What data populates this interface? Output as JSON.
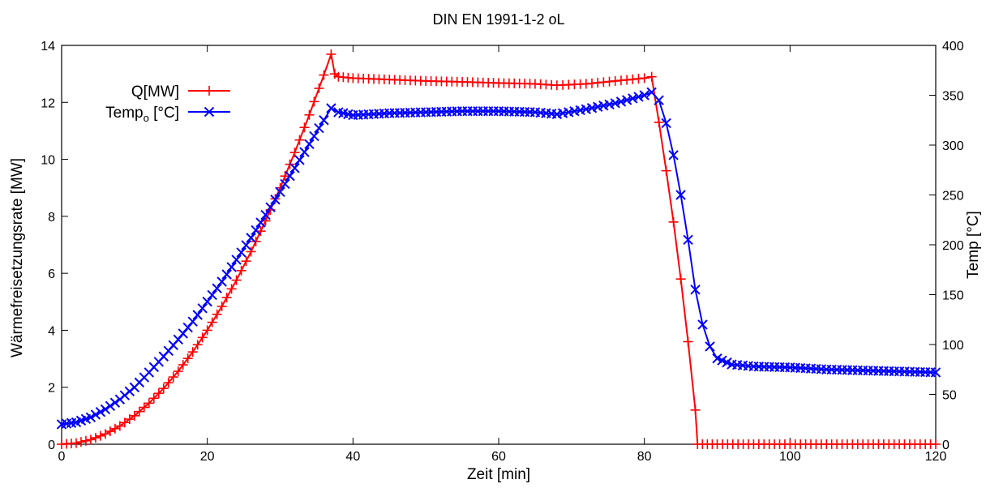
{
  "chart_data": {
    "type": "line",
    "title": "DIN EN 1991-1-2 oL",
    "xlabel": "Zeit [min]",
    "ylabel": "Wärmefreisetzungsrate [MW]",
    "y2label": "Temp [°C]",
    "xlim": [
      0,
      120
    ],
    "ylim": [
      0,
      14
    ],
    "y2lim": [
      0,
      400
    ],
    "x_ticks": [
      "0",
      "20",
      "40",
      "60",
      "80",
      "100",
      "120"
    ],
    "y_ticks": [
      "0",
      "2",
      "4",
      "6",
      "8",
      "10",
      "12",
      "14"
    ],
    "y2_ticks": [
      "0",
      "50",
      "100",
      "150",
      "200",
      "250",
      "300",
      "350",
      "400"
    ],
    "grid": false,
    "legend_position": "top-left",
    "series": [
      {
        "name": "Q[MW]",
        "axis": "left",
        "color": "#ff0000",
        "marker": "plus",
        "points": [
          [
            0,
            0
          ],
          [
            2,
            0.04
          ],
          [
            4,
            0.16
          ],
          [
            6,
            0.36
          ],
          [
            8,
            0.64
          ],
          [
            10,
            1.0
          ],
          [
            12,
            1.44
          ],
          [
            14,
            1.96
          ],
          [
            16,
            2.56
          ],
          [
            18,
            3.24
          ],
          [
            20,
            4.0
          ],
          [
            22,
            4.84
          ],
          [
            24,
            5.76
          ],
          [
            26,
            6.76
          ],
          [
            28,
            7.84
          ],
          [
            30,
            9.0
          ],
          [
            32,
            10.24
          ],
          [
            34,
            11.56
          ],
          [
            36,
            12.96
          ],
          [
            37,
            13.69
          ],
          [
            37.5,
            13.0
          ],
          [
            38,
            12.9
          ],
          [
            40,
            12.85
          ],
          [
            45,
            12.8
          ],
          [
            50,
            12.75
          ],
          [
            55,
            12.72
          ],
          [
            60,
            12.68
          ],
          [
            65,
            12.65
          ],
          [
            68,
            12.6
          ],
          [
            72,
            12.65
          ],
          [
            76,
            12.75
          ],
          [
            80,
            12.85
          ],
          [
            81,
            12.9
          ],
          [
            82,
            11.3
          ],
          [
            83,
            9.6
          ],
          [
            84,
            7.8
          ],
          [
            85,
            5.8
          ],
          [
            86,
            3.6
          ],
          [
            87,
            1.2
          ],
          [
            87.3,
            0
          ],
          [
            90,
            0
          ],
          [
            95,
            0
          ],
          [
            100,
            0
          ],
          [
            105,
            0
          ],
          [
            110,
            0
          ],
          [
            115,
            0
          ],
          [
            120,
            0
          ]
        ]
      },
      {
        "name": "Temp",
        "name_sub": "o",
        "name_suffix": " [°C]",
        "axis": "right",
        "color": "#0000ff",
        "marker": "x",
        "points": [
          [
            0,
            20
          ],
          [
            2,
            22
          ],
          [
            4,
            27
          ],
          [
            6,
            35
          ],
          [
            8,
            45
          ],
          [
            10,
            57
          ],
          [
            12,
            72
          ],
          [
            14,
            88
          ],
          [
            16,
            105
          ],
          [
            18,
            123
          ],
          [
            20,
            143
          ],
          [
            22,
            163
          ],
          [
            24,
            185
          ],
          [
            26,
            207
          ],
          [
            28,
            230
          ],
          [
            30,
            253
          ],
          [
            32,
            277
          ],
          [
            34,
            301
          ],
          [
            36,
            325
          ],
          [
            37,
            337
          ],
          [
            38,
            333
          ],
          [
            40,
            330
          ],
          [
            45,
            332
          ],
          [
            50,
            333
          ],
          [
            55,
            334
          ],
          [
            60,
            334
          ],
          [
            65,
            333
          ],
          [
            68,
            331
          ],
          [
            72,
            336
          ],
          [
            76,
            342
          ],
          [
            80,
            350
          ],
          [
            81,
            353
          ],
          [
            82,
            345
          ],
          [
            83,
            322
          ],
          [
            84,
            290
          ],
          [
            85,
            250
          ],
          [
            86,
            205
          ],
          [
            87,
            155
          ],
          [
            88,
            120
          ],
          [
            89,
            98
          ],
          [
            90,
            86
          ],
          [
            92,
            80
          ],
          [
            95,
            78
          ],
          [
            100,
            77
          ],
          [
            105,
            75
          ],
          [
            110,
            74
          ],
          [
            115,
            73
          ],
          [
            120,
            72
          ]
        ]
      }
    ]
  }
}
